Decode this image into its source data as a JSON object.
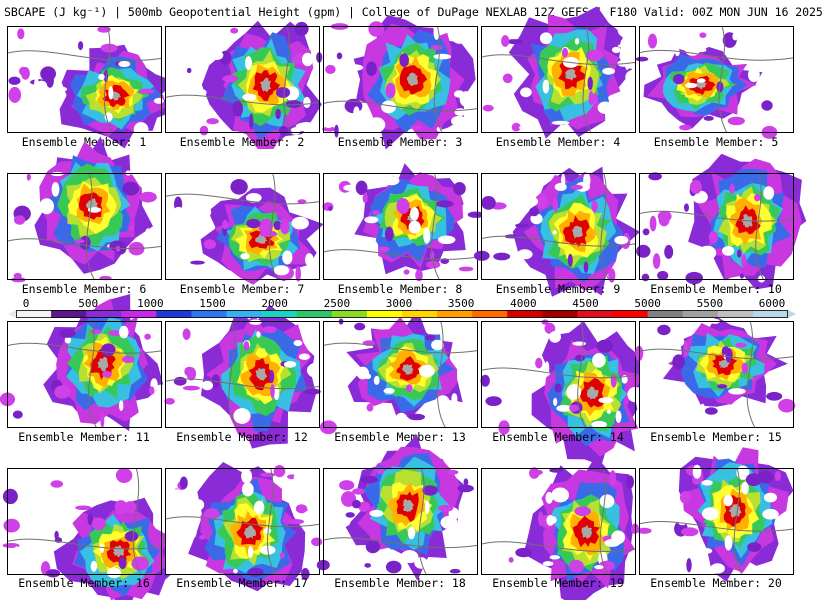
{
  "header": {
    "title": "SBCAPE (J kg⁻¹) | 500mb Geopotential Height (gpm) | College of DuPage NEXLAB 12Z GEFS | F180 Valid: 00Z MON JUN 16 2025"
  },
  "colorbar": {
    "ticks": [
      "0",
      "500",
      "1000",
      "1500",
      "2000",
      "2500",
      "3000",
      "3500",
      "4000",
      "4500",
      "5000",
      "5500",
      "6000"
    ],
    "colors": [
      "#f4f4f4",
      "#5a1a8e",
      "#8a2bd8",
      "#c828e8",
      "#1e3ad8",
      "#2a78f0",
      "#38b0f0",
      "#1ed4c0",
      "#30c468",
      "#8ad828",
      "#ffff00",
      "#ffd400",
      "#ffa000",
      "#ff6a00",
      "#d40000",
      "#a00000",
      "#e01020",
      "#ff0000",
      "#808080",
      "#a0a0a0",
      "#c0c0c0",
      "#b8d8e8"
    ]
  },
  "panels": [
    {
      "caption": "Ensemble Member: 1"
    },
    {
      "caption": "Ensemble Member: 2"
    },
    {
      "caption": "Ensemble Member: 3"
    },
    {
      "caption": "Ensemble Member: 4"
    },
    {
      "caption": "Ensemble Member: 5"
    },
    {
      "caption": "Ensemble Member: 6"
    },
    {
      "caption": "Ensemble Member: 7"
    },
    {
      "caption": "Ensemble Member: 8"
    },
    {
      "caption": "Ensemble Member: 9"
    },
    {
      "caption": "Ensemble Member: 10"
    },
    {
      "caption": "Ensemble Member: 11"
    },
    {
      "caption": "Ensemble Member: 12"
    },
    {
      "caption": "Ensemble Member: 13"
    },
    {
      "caption": "Ensemble Member: 14"
    },
    {
      "caption": "Ensemble Member: 15"
    },
    {
      "caption": "Ensemble Member: 16"
    },
    {
      "caption": "Ensemble Member: 17"
    },
    {
      "caption": "Ensemble Member: 18"
    },
    {
      "caption": "Ensemble Member: 19"
    },
    {
      "caption": "Ensemble Member: 20"
    }
  ]
}
